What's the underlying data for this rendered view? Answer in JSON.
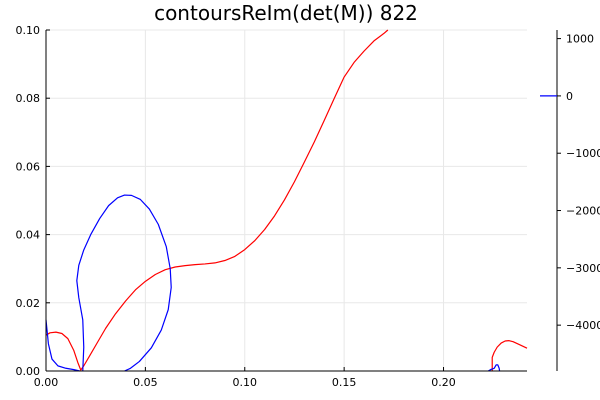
{
  "chart_data": {
    "type": "line",
    "title": "contoursReIm(det(M)) 822",
    "xlabel": "",
    "ylabel": "",
    "xlim": [
      0,
      0.242
    ],
    "ylim": [
      0,
      0.1
    ],
    "x_ticks": [
      0,
      0.05,
      0.1,
      0.15,
      0.2
    ],
    "x_tick_labels": [
      "0.00",
      "0.05",
      "0.10",
      "0.15",
      "0.20"
    ],
    "y_ticks": [
      0,
      0.02,
      0.04,
      0.06,
      0.08,
      0.1
    ],
    "y_tick_labels": [
      "0.00",
      "0.02",
      "0.04",
      "0.06",
      "0.08",
      "0.10"
    ],
    "grid": true,
    "colorbar": {
      "ticks": [
        1000,
        0,
        -1000,
        -2000,
        -3000,
        -4000
      ],
      "tick_labels": [
        "1000",
        "0",
        "−1000",
        "−2000",
        "−3000",
        "−4000"
      ],
      "range": [
        -4800,
        1150
      ],
      "band_color": "#0000ff",
      "band_value": 0
    },
    "series": [
      {
        "color": "#ff0000",
        "segments": [
          [
            [
              0.0,
              0.0105
            ],
            [
              0.002,
              0.0112
            ],
            [
              0.005,
              0.0114
            ],
            [
              0.008,
              0.011
            ],
            [
              0.011,
              0.0095
            ],
            [
              0.014,
              0.006
            ],
            [
              0.016,
              0.0025
            ],
            [
              0.0175,
              0.0003
            ],
            [
              0.019,
              0.0015
            ],
            [
              0.022,
              0.0045
            ],
            [
              0.026,
              0.0085
            ],
            [
              0.03,
              0.0125
            ],
            [
              0.035,
              0.0168
            ],
            [
              0.04,
              0.0205
            ],
            [
              0.045,
              0.0238
            ],
            [
              0.05,
              0.0263
            ],
            [
              0.055,
              0.0283
            ],
            [
              0.06,
              0.0297
            ],
            [
              0.065,
              0.0305
            ],
            [
              0.07,
              0.0309
            ],
            [
              0.075,
              0.0312
            ],
            [
              0.08,
              0.0314
            ],
            [
              0.085,
              0.0317
            ],
            [
              0.09,
              0.0324
            ],
            [
              0.095,
              0.0336
            ],
            [
              0.1,
              0.0356
            ],
            [
              0.105,
              0.0382
            ],
            [
              0.11,
              0.0415
            ],
            [
              0.115,
              0.0455
            ],
            [
              0.12,
              0.0502
            ],
            [
              0.125,
              0.0555
            ],
            [
              0.13,
              0.0613
            ],
            [
              0.135,
              0.0672
            ],
            [
              0.14,
              0.0735
            ],
            [
              0.145,
              0.0799
            ],
            [
              0.15,
              0.0862
            ],
            [
              0.155,
              0.0905
            ],
            [
              0.16,
              0.0938
            ],
            [
              0.165,
              0.0968
            ],
            [
              0.17,
              0.099
            ],
            [
              0.172,
              0.1
            ]
          ],
          [
            [
              0.2245,
              0.0
            ],
            [
              0.2245,
              0.004
            ],
            [
              0.2255,
              0.0055
            ],
            [
              0.227,
              0.007
            ],
            [
              0.229,
              0.0082
            ],
            [
              0.231,
              0.0088
            ],
            [
              0.233,
              0.0089
            ],
            [
              0.235,
              0.0086
            ],
            [
              0.238,
              0.0078
            ],
            [
              0.242,
              0.0067
            ]
          ]
        ]
      },
      {
        "color": "#0000ff",
        "segments": [
          [
            [
              0.0,
              0.015
            ],
            [
              0.0012,
              0.008
            ],
            [
              0.003,
              0.0035
            ],
            [
              0.006,
              0.0015
            ],
            [
              0.01,
              0.0008
            ],
            [
              0.014,
              0.0004
            ],
            [
              0.017,
              0.0
            ]
          ],
          [
            [
              0.0185,
              0.0
            ],
            [
              0.019,
              0.007
            ],
            [
              0.0185,
              0.015
            ],
            [
              0.0165,
              0.0215
            ],
            [
              0.0155,
              0.0265
            ],
            [
              0.0165,
              0.031
            ],
            [
              0.019,
              0.0355
            ],
            [
              0.0225,
              0.04
            ],
            [
              0.027,
              0.0447
            ],
            [
              0.0315,
              0.0485
            ],
            [
              0.036,
              0.0508
            ],
            [
              0.0395,
              0.0516
            ],
            [
              0.043,
              0.0515
            ],
            [
              0.0475,
              0.0503
            ],
            [
              0.052,
              0.0475
            ],
            [
              0.0565,
              0.043
            ],
            [
              0.0605,
              0.0365
            ],
            [
              0.0625,
              0.03
            ],
            [
              0.063,
              0.0245
            ],
            [
              0.0615,
              0.018
            ],
            [
              0.058,
              0.012
            ],
            [
              0.053,
              0.0068
            ],
            [
              0.047,
              0.0028
            ],
            [
              0.0425,
              0.0008
            ],
            [
              0.0395,
              0.0
            ]
          ],
          [
            [
              0.2225,
              0.0
            ],
            [
              0.224,
              0.0005
            ],
            [
              0.2255,
              0.0008
            ],
            [
              0.2265,
              0.0018
            ],
            [
              0.2273,
              0.0018
            ],
            [
              0.228,
              0.0008
            ],
            [
              0.2282,
              0.0
            ]
          ]
        ]
      }
    ]
  }
}
